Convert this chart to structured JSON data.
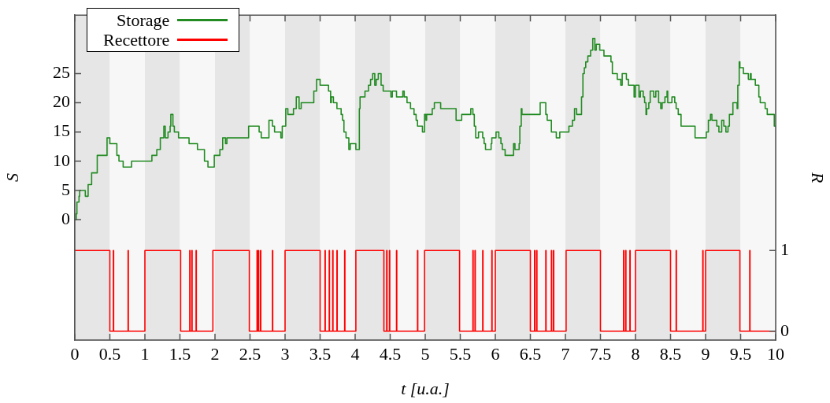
{
  "chart_data": {
    "type": "step",
    "xlabel": "t [u.a.]",
    "ylabel": "S",
    "y2label": "R",
    "xlim": [
      0,
      10
    ],
    "xticks": [
      0,
      0.5,
      1,
      1.5,
      2,
      2.5,
      3,
      3.5,
      4,
      4.5,
      5,
      5.5,
      6,
      6.5,
      7,
      7.5,
      8,
      8.5,
      9,
      9.5,
      10
    ],
    "ylim": [
      -20.6,
      35
    ],
    "yticks": [
      0,
      5,
      10,
      15,
      20,
      25
    ],
    "y2lim": [
      -0.11,
      3.92
    ],
    "y2ticks": [
      0,
      1
    ],
    "grid": false,
    "legend": "top left",
    "marker": "none",
    "line_style": "solid",
    "bands": [
      {
        "axis": "x",
        "from": 0,
        "to": 0.5,
        "color": "#e6e6e6"
      },
      {
        "axis": "x",
        "from": 0.5,
        "to": 1,
        "color": "#f7f7f7"
      },
      {
        "axis": "x",
        "from": 1,
        "to": 1.5,
        "color": "#e6e6e6"
      },
      {
        "axis": "x",
        "from": 1.5,
        "to": 2,
        "color": "#f7f7f7"
      },
      {
        "axis": "x",
        "from": 2,
        "to": 2.5,
        "color": "#e6e6e6"
      },
      {
        "axis": "x",
        "from": 2.5,
        "to": 3,
        "color": "#f7f7f7"
      },
      {
        "axis": "x",
        "from": 3,
        "to": 3.5,
        "color": "#e6e6e6"
      },
      {
        "axis": "x",
        "from": 3.5,
        "to": 4,
        "color": "#f7f7f7"
      },
      {
        "axis": "x",
        "from": 4,
        "to": 4.5,
        "color": "#e6e6e6"
      },
      {
        "axis": "x",
        "from": 4.5,
        "to": 5,
        "color": "#f7f7f7"
      },
      {
        "axis": "x",
        "from": 5,
        "to": 5.5,
        "color": "#e6e6e6"
      },
      {
        "axis": "x",
        "from": 5.5,
        "to": 6,
        "color": "#f7f7f7"
      },
      {
        "axis": "x",
        "from": 6,
        "to": 6.5,
        "color": "#e6e6e6"
      },
      {
        "axis": "x",
        "from": 6.5,
        "to": 7,
        "color": "#f7f7f7"
      },
      {
        "axis": "x",
        "from": 7,
        "to": 7.5,
        "color": "#e6e6e6"
      },
      {
        "axis": "x",
        "from": 7.5,
        "to": 8,
        "color": "#f7f7f7"
      },
      {
        "axis": "x",
        "from": 8,
        "to": 8.5,
        "color": "#e6e6e6"
      },
      {
        "axis": "x",
        "from": 8.5,
        "to": 9,
        "color": "#f7f7f7"
      },
      {
        "axis": "x",
        "from": 9,
        "to": 9.5,
        "color": "#e6e6e6"
      },
      {
        "axis": "x",
        "from": 9.5,
        "to": 10,
        "color": "#f7f7f7"
      }
    ],
    "series": [
      {
        "name": "Storage",
        "color": "#228b22",
        "type": "step",
        "x": [
          0,
          0.02,
          0.03,
          0.06,
          0.07,
          0.15,
          0.19,
          0.24,
          0.32,
          0.46,
          0.5,
          0.6,
          0.63,
          0.69,
          0.81,
          1.1,
          1.17,
          1.22,
          1.27,
          1.29,
          1.33,
          1.36,
          1.37,
          1.4,
          1.42,
          1.48,
          1.63,
          1.75,
          1.85,
          1.9,
          1.99,
          2.07,
          2.11,
          2.15,
          2.17,
          2.48,
          2.63,
          2.66,
          2.77,
          2.82,
          2.85,
          2.94,
          2.96,
          3.01,
          3.04,
          3.12,
          3.16,
          3.2,
          3.23,
          3.41,
          3.45,
          3.5,
          3.62,
          3.65,
          3.66,
          3.69,
          3.74,
          3.8,
          3.82,
          3.84,
          3.87,
          3.91,
          3.93,
          4.01,
          4.06,
          4.07,
          4.14,
          4.19,
          4.22,
          4.25,
          4.28,
          4.3,
          4.33,
          4.37,
          4.4,
          4.51,
          4.53,
          4.59,
          4.68,
          4.7,
          4.74,
          4.79,
          4.84,
          4.87,
          4.89,
          4.96,
          4.99,
          5.01,
          5.02,
          5.1,
          5.13,
          5.22,
          5.44,
          5.52,
          5.65,
          5.68,
          5.7,
          5.72,
          5.76,
          5.82,
          5.84,
          5.86,
          5.94,
          5.95,
          6.01,
          6.05,
          6.08,
          6.1,
          6.14,
          6.26,
          6.28,
          6.34,
          6.35,
          6.37,
          6.38,
          6.64,
          6.72,
          6.74,
          6.8,
          6.87,
          6.92,
          7.05,
          7.1,
          7.13,
          7.16,
          7.23,
          7.25,
          7.27,
          7.29,
          7.32,
          7.36,
          7.39,
          7.42,
          7.44,
          7.49,
          7.55,
          7.65,
          7.67,
          7.74,
          7.79,
          7.81,
          7.87,
          7.9,
          7.98,
          8,
          8.05,
          8.07,
          8.11,
          8.13,
          8.15,
          8.16,
          8.19,
          8.21,
          8.26,
          8.29,
          8.33,
          8.36,
          8.38,
          8.42,
          8.45,
          8.46,
          8.52,
          8.56,
          8.58,
          8.61,
          8.65,
          8.85,
          9.01,
          9.04,
          9.07,
          9.09,
          9.16,
          9.19,
          9.23,
          9.26,
          9.29,
          9.32,
          9.34,
          9.39,
          9.45,
          9.46,
          9.48,
          9.49,
          9.54,
          9.61,
          9.64,
          9.65,
          9.71,
          9.76,
          9.78,
          9.85,
          9.88,
          9.98,
          10
        ],
        "values": [
          0,
          1,
          3,
          4,
          5,
          4,
          6,
          8,
          11,
          14,
          13,
          11,
          10,
          9,
          10,
          11,
          12,
          14,
          16,
          14,
          15,
          16,
          18,
          16,
          15,
          14,
          13,
          12,
          10,
          9,
          11,
          12,
          14,
          13,
          14,
          16,
          15,
          14,
          17,
          16,
          15,
          14,
          16,
          19,
          18,
          19,
          21,
          19,
          20,
          22,
          24,
          23,
          22,
          20,
          21,
          20,
          19,
          18,
          17,
          15,
          14,
          12,
          13,
          12,
          19,
          21,
          22,
          23,
          24,
          25,
          23,
          24,
          25,
          23,
          22,
          21,
          22,
          21,
          22,
          21,
          20,
          19,
          18,
          17,
          16,
          15,
          18,
          17,
          18,
          19,
          20,
          19,
          17,
          18,
          19,
          18,
          16,
          14,
          15,
          14,
          13,
          12,
          13,
          14,
          15,
          14,
          13,
          12,
          11,
          13,
          12,
          13,
          16,
          19,
          18,
          20,
          18,
          17,
          15,
          14,
          15,
          16,
          17,
          19,
          18,
          21,
          25,
          26,
          27,
          28,
          29,
          31,
          29,
          30,
          29,
          28,
          27,
          25,
          24,
          23,
          25,
          24,
          23,
          21,
          23,
          21,
          22,
          21,
          20,
          18,
          19,
          20,
          22,
          21,
          22,
          20,
          19,
          20,
          21,
          22,
          20,
          21,
          20,
          19,
          18,
          16,
          14,
          15,
          17,
          18,
          17,
          16,
          15,
          17,
          16,
          15,
          16,
          18,
          20,
          19,
          23,
          27,
          26,
          25,
          24,
          25,
          24,
          23,
          21,
          20,
          19,
          18,
          16,
          16
        ]
      },
      {
        "name": "Recettore",
        "color": "#ff0000",
        "type": "step",
        "axis": "y2",
        "x": [
          0,
          0.5,
          0.55,
          0.554,
          0.76,
          0.764,
          1,
          1.51,
          1.64,
          1.644,
          1.67,
          1.674,
          1.73,
          1.734,
          1.97,
          2.49,
          2.6,
          2.604,
          2.62,
          2.624,
          2.65,
          2.654,
          2.82,
          2.824,
          3,
          3.5,
          3.57,
          3.574,
          3.63,
          3.634,
          3.68,
          3.684,
          3.74,
          3.744,
          3.85,
          3.854,
          4.01,
          4.41,
          4.45,
          4.454,
          4.49,
          4.494,
          4.59,
          4.594,
          4.89,
          4.894,
          4.99,
          5.49,
          5.68,
          5.684,
          5.71,
          5.714,
          5.82,
          5.824,
          5.95,
          5.954,
          6,
          6.5,
          6.56,
          6.564,
          6.59,
          6.594,
          6.72,
          6.724,
          6.8,
          6.804,
          6.83,
          6.834,
          7.01,
          7.5,
          7.83,
          7.834,
          7.86,
          7.864,
          7.92,
          7.924,
          8,
          8.5,
          8.58,
          8.584,
          8.96,
          8.964,
          9,
          9.49,
          9.63,
          9.634,
          10
        ],
        "values": [
          1,
          0,
          1,
          0,
          1,
          0,
          1,
          0,
          1,
          0,
          1,
          0,
          1,
          0,
          1,
          0,
          1,
          0,
          1,
          0,
          1,
          0,
          1,
          0,
          1,
          0,
          1,
          0,
          1,
          0,
          1,
          0,
          1,
          0,
          1,
          0,
          1,
          0,
          1,
          0,
          1,
          0,
          1,
          0,
          1,
          0,
          1,
          0,
          1,
          0,
          1,
          0,
          1,
          0,
          1,
          0,
          1,
          0,
          1,
          0,
          1,
          0,
          1,
          0,
          1,
          0,
          1,
          0,
          1,
          0,
          1,
          0,
          1,
          0,
          1,
          0,
          1,
          0,
          1,
          0,
          1,
          0,
          1,
          0,
          1,
          0,
          0
        ]
      }
    ]
  }
}
